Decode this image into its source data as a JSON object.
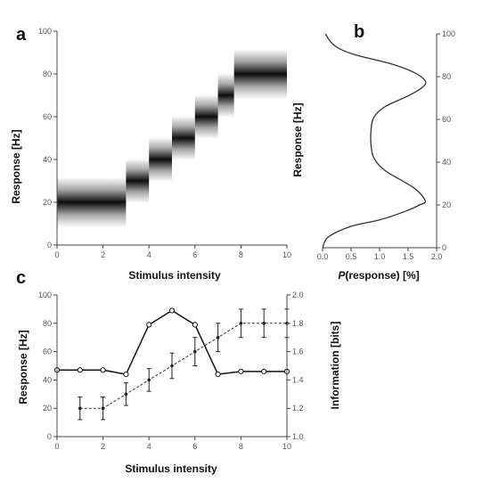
{
  "chart_data": [
    {
      "panel": "a",
      "type": "heatmap",
      "xlabel": "Stimulus intensity",
      "ylabel": "Response [Hz]",
      "xlim": [
        0,
        10
      ],
      "ylim": [
        0,
        100
      ],
      "xticks": [
        0,
        2,
        4,
        6,
        8,
        10
      ],
      "yticks": [
        0,
        20,
        40,
        60,
        80,
        100
      ],
      "bands": [
        {
          "x_start": 0,
          "x_end": 3,
          "y": 20,
          "spread": 9
        },
        {
          "x_start": 3,
          "x_end": 4,
          "y": 30,
          "spread": 8
        },
        {
          "x_start": 4,
          "x_end": 5,
          "y": 40,
          "spread": 8
        },
        {
          "x_start": 5,
          "x_end": 6,
          "y": 50,
          "spread": 8
        },
        {
          "x_start": 6,
          "x_end": 7,
          "y": 60,
          "spread": 8
        },
        {
          "x_start": 7,
          "x_end": 7.7,
          "y": 70,
          "spread": 8
        },
        {
          "x_start": 7.7,
          "x_end": 10,
          "y": 80,
          "spread": 9
        }
      ]
    },
    {
      "panel": "b",
      "type": "line",
      "xlabel_italic": "P",
      "xlabel_rest": "(response) [%]",
      "ylabel": "Response [Hz]",
      "xlim": [
        0,
        2
      ],
      "ylim": [
        0,
        100
      ],
      "xticks": [
        "0.0",
        "0.5",
        "1.0",
        "1.5",
        "2.0"
      ],
      "yticks": [
        0,
        20,
        40,
        60,
        80,
        100
      ],
      "x": [
        0.0,
        0.1,
        0.5,
        1.0,
        1.45,
        1.7,
        1.8,
        1.6,
        1.1,
        0.9,
        0.85,
        0.85,
        0.9,
        1.1,
        1.5,
        1.75,
        1.8,
        1.6,
        1.2,
        0.6,
        0.3,
        0.15,
        0.05
      ],
      "y": [
        0,
        5,
        10,
        13,
        17,
        20,
        22,
        28,
        36,
        42,
        48,
        55,
        61,
        66,
        71,
        75,
        78,
        82,
        86,
        90,
        93,
        96,
        100
      ]
    },
    {
      "panel": "c",
      "type": "line",
      "xlabel": "Stimulus intensity",
      "ylabel_left": "Response [Hz]",
      "ylabel_right": "Information [bits]",
      "xlim": [
        0,
        10
      ],
      "ylim_left": [
        0,
        100
      ],
      "ylim_right": [
        1.0,
        2.0
      ],
      "xticks": [
        0,
        2,
        4,
        6,
        8,
        10
      ],
      "yticks_left": [
        0,
        20,
        40,
        60,
        80,
        100
      ],
      "yticks_right": [
        "1.0",
        "1.2",
        "1.4",
        "1.6",
        "1.8",
        "2.0"
      ],
      "series": [
        {
          "x": [
            1,
            2,
            3,
            4,
            5,
            6,
            7,
            8,
            9,
            10
          ],
          "values": [
            20,
            20,
            30,
            40,
            50,
            60,
            70,
            80,
            80,
            80
          ],
          "errors": [
            8,
            8,
            8,
            8,
            9,
            10,
            10,
            10,
            10,
            10
          ],
          "style": "dashed-error"
        },
        {
          "x": [
            0,
            1,
            2,
            3,
            4,
            5,
            6,
            7,
            8,
            9,
            10
          ],
          "values": [
            1.47,
            1.47,
            1.47,
            1.44,
            1.79,
            1.89,
            1.79,
            1.44,
            1.46,
            1.46,
            1.46
          ],
          "style": "solid-circle"
        }
      ]
    }
  ]
}
